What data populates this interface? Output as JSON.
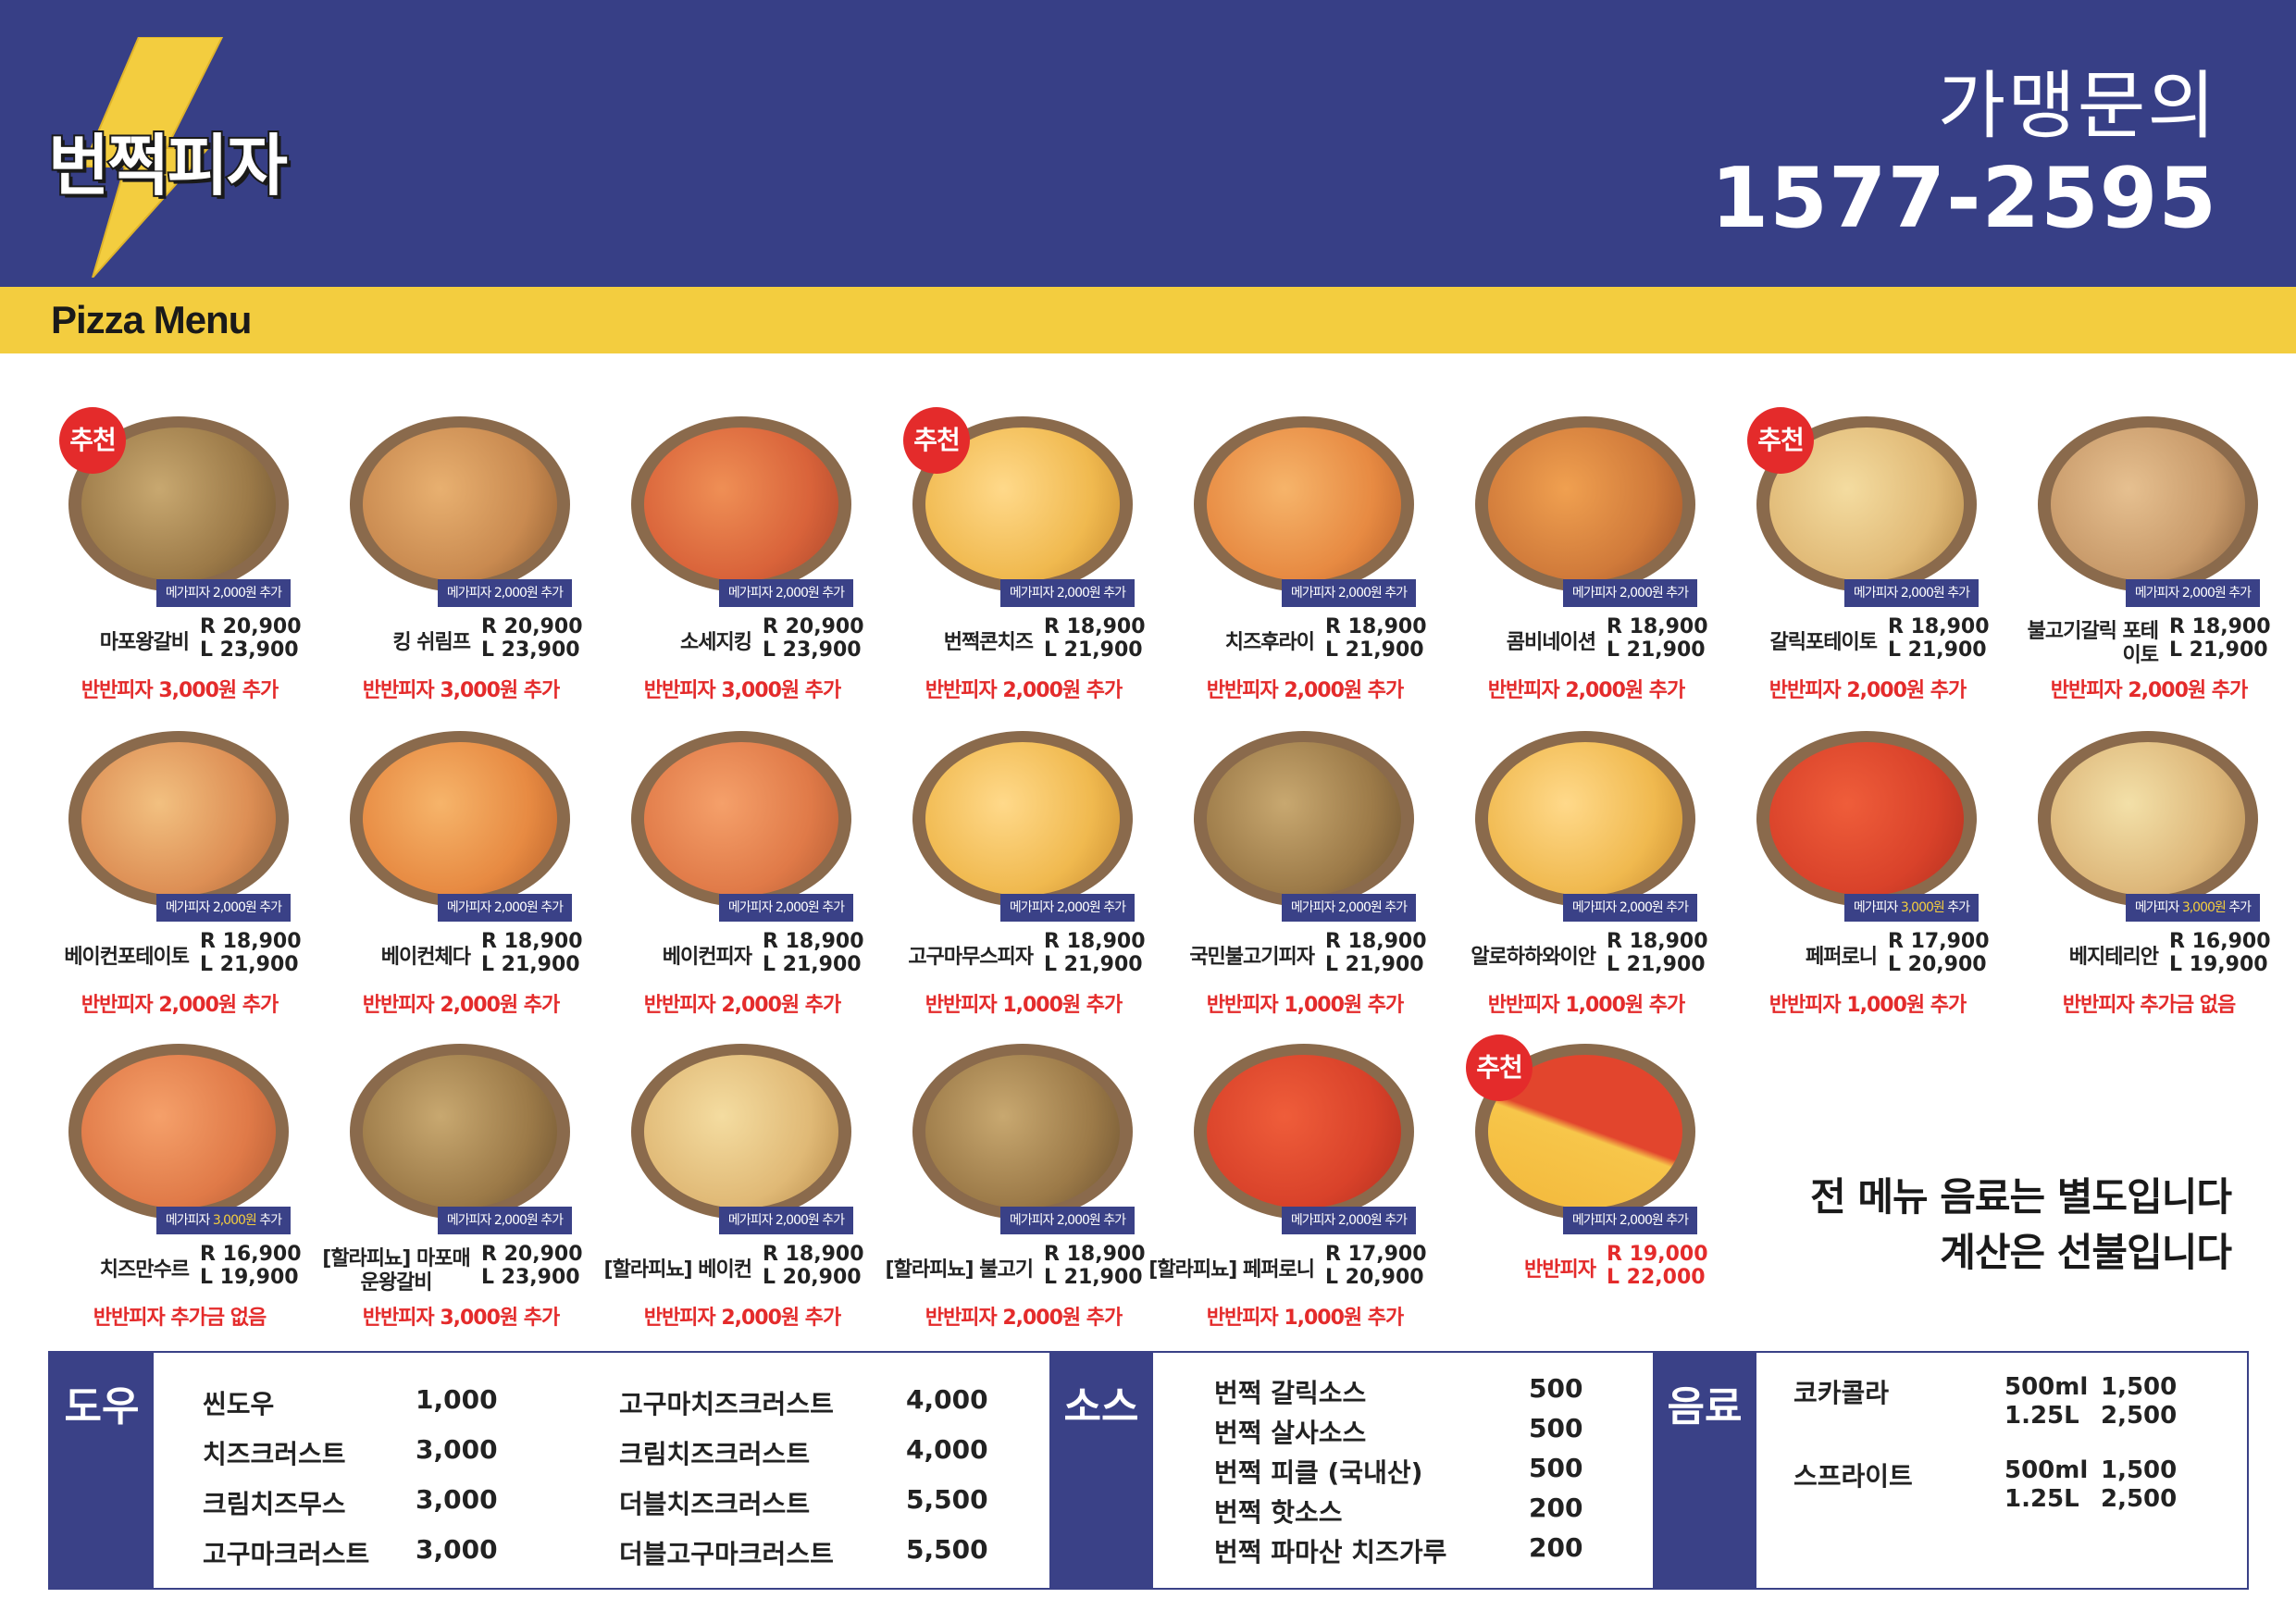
{
  "brand": {
    "name": "번쩍피자",
    "logo_icon": "lightning-bolt-icon"
  },
  "inquiry": {
    "label": "가맹문의",
    "phone": "1577-2595"
  },
  "section_title": "Pizza Menu",
  "colors": {
    "header": "#373f86",
    "bar": "#f3cd3f",
    "accent_red": "#e42b2b",
    "badge_bg": "#3a4187"
  },
  "recommend_label": "추천",
  "pizzas": [
    {
      "name": "마포왕갈비",
      "r": "R 20,900",
      "l": "L 23,900",
      "mega": "메가피자 2,000원 추가",
      "half": "반반피자 3,000원 추가",
      "rec": true
    },
    {
      "name": "킹 쉬림프",
      "r": "R 20,900",
      "l": "L 23,900",
      "mega": "메가피자 2,000원 추가",
      "half": "반반피자 3,000원 추가",
      "rec": false
    },
    {
      "name": "소세지킹",
      "r": "R 20,900",
      "l": "L 23,900",
      "mega": "메가피자 2,000원 추가",
      "half": "반반피자 3,000원 추가",
      "rec": false
    },
    {
      "name": "번쩍콘치즈",
      "r": "R 18,900",
      "l": "L 21,900",
      "mega": "메가피자 2,000원 추가",
      "half": "반반피자 2,000원 추가",
      "rec": true
    },
    {
      "name": "치즈후라이",
      "r": "R 18,900",
      "l": "L 21,900",
      "mega": "메가피자 2,000원 추가",
      "half": "반반피자 2,000원 추가",
      "rec": false
    },
    {
      "name": "콤비네이션",
      "r": "R 18,900",
      "l": "L 21,900",
      "mega": "메가피자 2,000원 추가",
      "half": "반반피자 2,000원 추가",
      "rec": false
    },
    {
      "name": "갈릭포테이토",
      "r": "R 18,900",
      "l": "L 21,900",
      "mega": "메가피자 2,000원 추가",
      "half": "반반피자 2,000원 추가",
      "rec": true
    },
    {
      "name": "불고기갈릭 포테이토",
      "r": "R 18,900",
      "l": "L 21,900",
      "mega": "메가피자 2,000원 추가",
      "half": "반반피자 2,000원 추가",
      "rec": false
    },
    {
      "name": "베이컨포테이토",
      "r": "R 18,900",
      "l": "L 21,900",
      "mega": "메가피자 2,000원 추가",
      "half": "반반피자 2,000원 추가",
      "rec": false
    },
    {
      "name": "베이컨체다",
      "r": "R 18,900",
      "l": "L 21,900",
      "mega": "메가피자 2,000원 추가",
      "half": "반반피자 2,000원 추가",
      "rec": false
    },
    {
      "name": "베이컨피자",
      "r": "R 18,900",
      "l": "L 21,900",
      "mega": "메가피자 2,000원 추가",
      "half": "반반피자 2,000원 추가",
      "rec": false
    },
    {
      "name": "고구마무스피자",
      "r": "R 18,900",
      "l": "L 21,900",
      "mega": "메가피자 2,000원 추가",
      "half": "반반피자 1,000원 추가",
      "rec": false
    },
    {
      "name": "국민불고기피자",
      "r": "R 18,900",
      "l": "L 21,900",
      "mega": "메가피자 2,000원 추가",
      "half": "반반피자 1,000원 추가",
      "rec": false
    },
    {
      "name": "알로하하와이안",
      "r": "R 18,900",
      "l": "L 21,900",
      "mega": "메가피자 2,000원 추가",
      "half": "반반피자 1,000원 추가",
      "rec": false
    },
    {
      "name": "페퍼로니",
      "r": "R 17,900",
      "l": "L 20,900",
      "mega_a": "메가피자 ",
      "mega_b": "3,000원",
      "mega_c": " 추가",
      "half": "반반피자 1,000원 추가",
      "rec": false
    },
    {
      "name": "베지테리안",
      "r": "R 16,900",
      "l": "L 19,900",
      "mega_a": "메가피자 ",
      "mega_b": "3,000원",
      "mega_c": " 추가",
      "half": "반반피자 추가금 없음",
      "rec": false
    },
    {
      "name": "치즈만수르",
      "r": "R 16,900",
      "l": "L 19,900",
      "mega_a": "메가피자 ",
      "mega_b": "3,000원",
      "mega_c": " 추가",
      "half": "반반피자 추가금 없음",
      "rec": false
    },
    {
      "name": "[할라피뇨] 마포매운왕갈비",
      "r": "R 20,900",
      "l": "L 23,900",
      "mega": "메가피자 2,000원 추가",
      "half": "반반피자 3,000원 추가",
      "rec": false
    },
    {
      "name": "[할라피뇨] 베이컨",
      "r": "R 18,900",
      "l": "L 20,900",
      "mega": "메가피자 2,000원 추가",
      "half": "반반피자 2,000원 추가",
      "rec": false
    },
    {
      "name": "[할라피뇨] 불고기",
      "r": "R 18,900",
      "l": "L 21,900",
      "mega": "메가피자 2,000원 추가",
      "half": "반반피자 2,000원 추가",
      "rec": false
    },
    {
      "name": "[할라피뇨] 페퍼로니",
      "r": "R 17,900",
      "l": "L 20,900",
      "mega": "메가피자 2,000원 추가",
      "half": "반반피자 1,000원 추가",
      "rec": false
    },
    {
      "name": "반반피자",
      "r": "R 19,000",
      "l": "L 22,000",
      "mega": "메가피자 2,000원 추가",
      "half": "",
      "rec": true
    }
  ],
  "notice": {
    "line1": "전 메뉴 음료는 별도입니다",
    "line2": "계산은 선불입니다"
  },
  "dough": {
    "label": "도우",
    "left": [
      {
        "name": "씬도우",
        "price": "1,000"
      },
      {
        "name": "치즈크러스트",
        "price": "3,000"
      },
      {
        "name": "크림치즈무스",
        "price": "3,000"
      },
      {
        "name": "고구마크러스트",
        "price": "3,000"
      }
    ],
    "right": [
      {
        "name": "고구마치즈크러스트",
        "price": "4,000"
      },
      {
        "name": "크림치즈크러스트",
        "price": "4,000"
      },
      {
        "name": "더블치즈크러스트",
        "price": "5,500"
      },
      {
        "name": "더블고구마크러스트",
        "price": "5,500"
      }
    ]
  },
  "sauce": {
    "label": "소스",
    "items": [
      {
        "name": "번쩍 갈릭소스",
        "price": "500"
      },
      {
        "name": "번쩍 살사소스",
        "price": "500"
      },
      {
        "name": "번쩍 피클 (국내산)",
        "price": "500"
      },
      {
        "name": "번쩍 핫소스",
        "price": "200"
      },
      {
        "name": "번쩍 파마산 치즈가루",
        "price": "200"
      }
    ]
  },
  "drinks": {
    "label": "음료",
    "items": [
      {
        "name": "코카콜라",
        "size1": "500ml",
        "price1": "1,500",
        "size2": "1.25L",
        "price2": "2,500"
      },
      {
        "name": "스프라이트",
        "size1": "500ml",
        "price1": "1,500",
        "size2": "1.25L",
        "price2": "2,500"
      }
    ]
  }
}
